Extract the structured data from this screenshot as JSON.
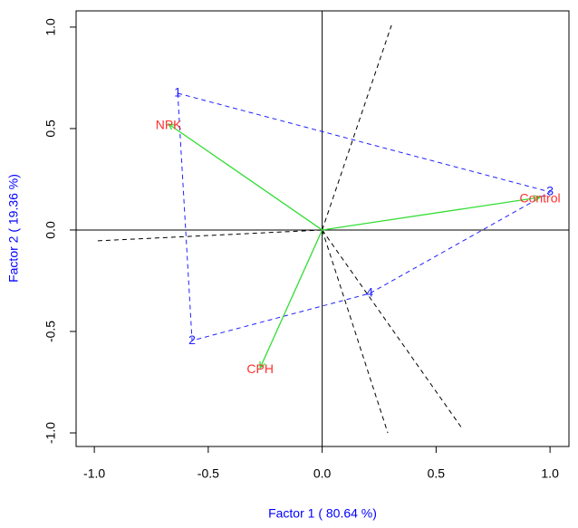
{
  "chart_data": {
    "type": "biplot",
    "xlabel": "Factor 1 ( 80.64 %)",
    "ylabel": "Factor 2 ( 19.36 %)",
    "axis_label_color": "#0000ff",
    "xlim": [
      -1.08,
      1.083
    ],
    "ylim": [
      -1.067,
      1.08
    ],
    "xticks": [
      {
        "value": -1,
        "label": "-1.0"
      },
      -0.5,
      {
        "value": 0,
        "label": "0.0"
      },
      0.5,
      {
        "value": 1,
        "label": "1.0"
      }
    ],
    "yticks": [
      {
        "value": -1,
        "label": "-1.0"
      },
      -0.5,
      {
        "value": 0,
        "label": "0.0"
      },
      0.5,
      {
        "value": 1,
        "label": "1.0"
      }
    ],
    "arrows": {
      "color": "#33dd33",
      "label_color": "#ff3030",
      "labels": [
        "NPK",
        "Control",
        "CPH"
      ],
      "x": [
        -0.674,
        0.956,
        -0.272
      ],
      "y": [
        0.522,
        0.161,
        -0.679
      ]
    },
    "polygon": {
      "color": "#2020ff",
      "labels": [
        "1",
        "3",
        "4",
        "2"
      ],
      "x": [
        -0.634,
        1.0,
        0.209,
        -0.571
      ],
      "y": [
        0.674,
        0.1875,
        -0.3125,
        -0.545
      ]
    },
    "rays": {
      "color": "#000000",
      "x": [
        0.304,
        -0.996,
        0.288,
        0.614
      ],
      "y": [
        1.009,
        -0.054,
        -1.0,
        -0.978
      ]
    }
  }
}
